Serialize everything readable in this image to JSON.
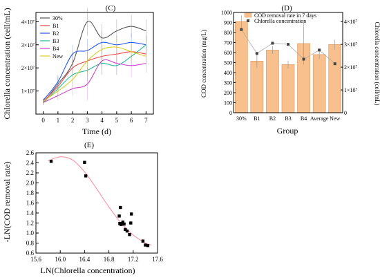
{
  "chart_data": [
    {
      "panel_label": "(C)",
      "type": "line",
      "xlabel": "Time (d)",
      "ylabel": "Chlorella concentration (cell/mL)",
      "x": [
        0,
        1,
        2,
        3,
        4,
        5,
        6,
        7
      ],
      "xlim": [
        -0.5,
        7.5
      ],
      "ylim": [
        0,
        44000000.0
      ],
      "xticks": [
        "0",
        "1",
        "2",
        "3",
        "4",
        "5",
        "6",
        "7"
      ],
      "yticks": [
        {
          "v": 10000000.0,
          "label": "1×10⁷"
        },
        {
          "v": 20000000.0,
          "label": "2×10⁷"
        },
        {
          "v": 30000000.0,
          "label": "3×10⁷"
        },
        {
          "v": 40000000.0,
          "label": "4×10⁷"
        }
      ],
      "legend_position": "top-left",
      "series": [
        {
          "name": "30%",
          "color": "#555555",
          "values": [
            5000000.0,
            13000000.0,
            22000000.0,
            40000000.0,
            33000000.0,
            36000000.0,
            38000000.0,
            36000000.0
          ],
          "errors": [
            1000000.0,
            3000000.0,
            5000000.0,
            6000000.0,
            6000000.0,
            5000000.0,
            5000000.0,
            5000000.0
          ]
        },
        {
          "name": "B1",
          "color": "#ee4444",
          "values": [
            5500000.0,
            12000000.0,
            20000000.0,
            23000000.0,
            25000000.0,
            26000000.0,
            27000000.0,
            26000000.0
          ],
          "errors": [
            1000000.0,
            3000000.0,
            4000000.0,
            5000000.0,
            5000000.0,
            4000000.0,
            4000000.0,
            4000000.0
          ]
        },
        {
          "name": "B2",
          "color": "#2255ee",
          "values": [
            6000000.0,
            14000000.0,
            26000000.0,
            27500000.0,
            31000000.0,
            30000000.0,
            31000000.0,
            30000000.0
          ],
          "errors": [
            1000000.0,
            3000000.0,
            4000000.0,
            5000000.0,
            5000000.0,
            4000000.0,
            4000000.0,
            4000000.0
          ]
        },
        {
          "name": "B3",
          "color": "#22bb99",
          "values": [
            5000000.0,
            11000000.0,
            17000000.0,
            19000000.0,
            22000000.0,
            21000000.0,
            25000000.0,
            30000000.0
          ],
          "errors": [
            1000000.0,
            3000000.0,
            4000000.0,
            5000000.0,
            5000000.0,
            4000000.0,
            4000000.0,
            4000000.0
          ]
        },
        {
          "name": "B4",
          "color": "#cc44cc",
          "values": [
            5000000.0,
            8000000.0,
            11000000.0,
            13000000.0,
            23000000.0,
            22000000.0,
            21000000.0,
            22000000.0
          ],
          "errors": [
            1000000.0,
            2000000.0,
            3000000.0,
            7000000.0,
            6000000.0,
            5000000.0,
            5000000.0,
            4000000.0
          ]
        },
        {
          "name": "New",
          "color": "#ddcc22",
          "values": [
            5500000.0,
            10000000.0,
            15000000.0,
            23000000.0,
            28000000.0,
            29000000.0,
            27000000.0,
            25000000.0
          ],
          "errors": [
            1000000.0,
            3000000.0,
            4000000.0,
            6000000.0,
            5000000.0,
            5000000.0,
            4000000.0,
            4000000.0
          ]
        }
      ]
    },
    {
      "panel_label": "(D)",
      "type": "bar",
      "xlabel": "Group",
      "ylabel": "COD concentration (mg/L)",
      "ylabel_right": "Chlorella concentration (cell/mL)",
      "categories": [
        "30%",
        "B1",
        "B2",
        "B3",
        "B4",
        "Average",
        "New"
      ],
      "ylim": [
        0,
        1000
      ],
      "yticks": [
        0,
        100,
        200,
        300,
        400,
        500,
        600,
        700,
        800,
        900,
        1000
      ],
      "y2lim": [
        0,
        44000000.0
      ],
      "y2ticks": [
        {
          "v": 0,
          "label": "0"
        },
        {
          "v": 10000000.0,
          "label": "1×10⁷"
        },
        {
          "v": 20000000.0,
          "label": "2×10⁷"
        },
        {
          "v": 30000000.0,
          "label": "3×10⁷"
        },
        {
          "v": 40000000.0,
          "label": "4×10⁷"
        }
      ],
      "legend_position": "top-center",
      "series": [
        {
          "name": "COD removal rate in 7 days",
          "kind": "bar",
          "color": "#f8c08c",
          "values": [
            910,
            515,
            625,
            480,
            690,
            580,
            680
          ],
          "errors": [
            60,
            70,
            40,
            40,
            210,
            45,
            50
          ]
        },
        {
          "name": "Chlorella concentration",
          "kind": "line",
          "color": "#444444",
          "values": [
            36500000.0,
            26000000.0,
            30500000.0,
            30000000.0,
            23500000.0,
            27500000.0,
            21500000.0
          ]
        }
      ]
    },
    {
      "panel_label": "(E)",
      "type": "scatter",
      "xlabel": "LN(Chlorella concentration)",
      "ylabel": "-LN(COD removal rate)",
      "xlim": [
        15.6,
        17.6
      ],
      "ylim": [
        0.6,
        2.6
      ],
      "xticks": [
        "15.6",
        "16.0",
        "16.4",
        "16.8",
        "17.2",
        "17.6"
      ],
      "yticks": [
        "0.6",
        "0.8",
        "1.0",
        "1.2",
        "1.4",
        "1.6",
        "1.8",
        "2.0",
        "2.2",
        "2.4",
        "2.6"
      ],
      "points": [
        [
          15.85,
          2.43
        ],
        [
          16.4,
          2.41
        ],
        [
          16.42,
          2.14
        ],
        [
          16.97,
          1.34
        ],
        [
          16.99,
          1.51
        ],
        [
          16.98,
          1.19
        ],
        [
          17.0,
          1.17
        ],
        [
          17.01,
          1.19
        ],
        [
          17.03,
          1.22
        ],
        [
          17.05,
          1.18
        ],
        [
          17.07,
          1.07
        ],
        [
          17.1,
          1.04
        ],
        [
          17.14,
          0.97
        ],
        [
          17.17,
          1.38
        ],
        [
          17.16,
          1.2
        ],
        [
          17.36,
          0.84
        ],
        [
          17.4,
          0.76
        ],
        [
          17.44,
          0.75
        ]
      ],
      "fit_color": "#ff8899",
      "fit": {
        "x": [
          15.8,
          16.0,
          16.2,
          16.4,
          16.6,
          16.8,
          17.0,
          17.2,
          17.4,
          17.5
        ],
        "y": [
          2.44,
          2.52,
          2.46,
          2.22,
          1.88,
          1.52,
          1.2,
          0.96,
          0.8,
          0.76
        ]
      }
    }
  ]
}
